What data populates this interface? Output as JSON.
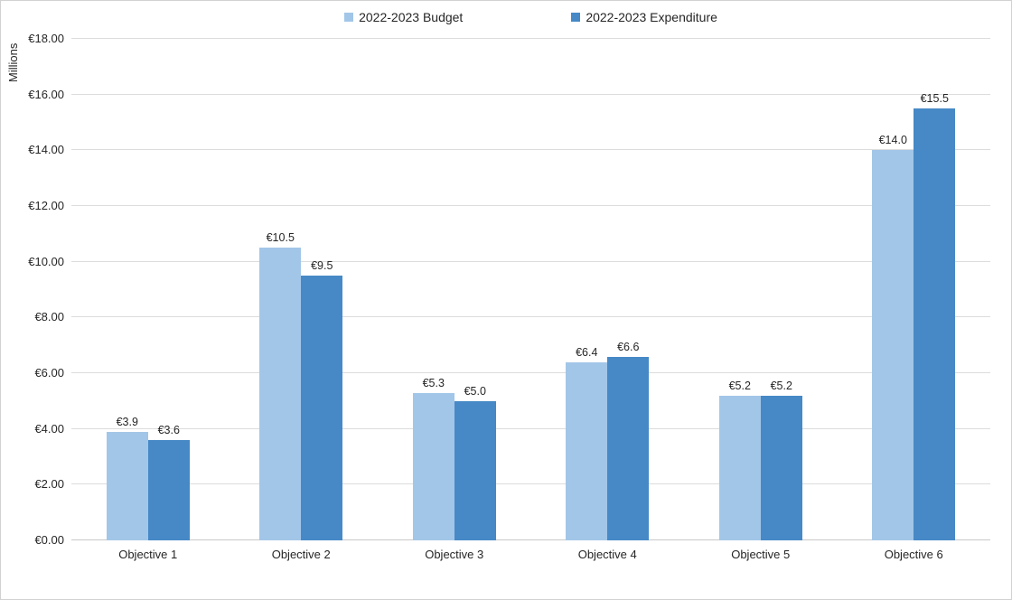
{
  "chart_data": {
    "type": "bar",
    "title": "",
    "ylabel": "Millions",
    "ylim": [
      0,
      18
    ],
    "ytick_step": 2,
    "ytick_labels": [
      "€0.00",
      "€2.00",
      "€4.00",
      "€6.00",
      "€8.00",
      "€10.00",
      "€12.00",
      "€14.00",
      "€16.00",
      "€18.00"
    ],
    "grid": true,
    "legend_position": "top",
    "categories": [
      "Objective 1",
      "Objective 2",
      "Objective 3",
      "Objective 4",
      "Objective 5",
      "Objective 6"
    ],
    "series": [
      {
        "name": "2022-2023 Budget",
        "color": "#a2c6e8",
        "values": [
          3.9,
          10.5,
          5.3,
          6.4,
          5.2,
          14.0
        ],
        "labels": [
          "€3.9",
          "€10.5",
          "€5.3",
          "€6.4",
          "€5.2",
          "€14.0"
        ]
      },
      {
        "name": "2022-2023 Expenditure",
        "color": "#4689c6",
        "values": [
          3.6,
          9.5,
          5.0,
          6.6,
          5.2,
          15.5
        ],
        "labels": [
          "€3.6",
          "€9.5",
          "€5.0",
          "€6.6",
          "€5.2",
          "€15.5"
        ]
      }
    ],
    "colors": {
      "gridline": "#dcdcdc",
      "axis_text": "#262626",
      "background": "#ffffff"
    }
  }
}
